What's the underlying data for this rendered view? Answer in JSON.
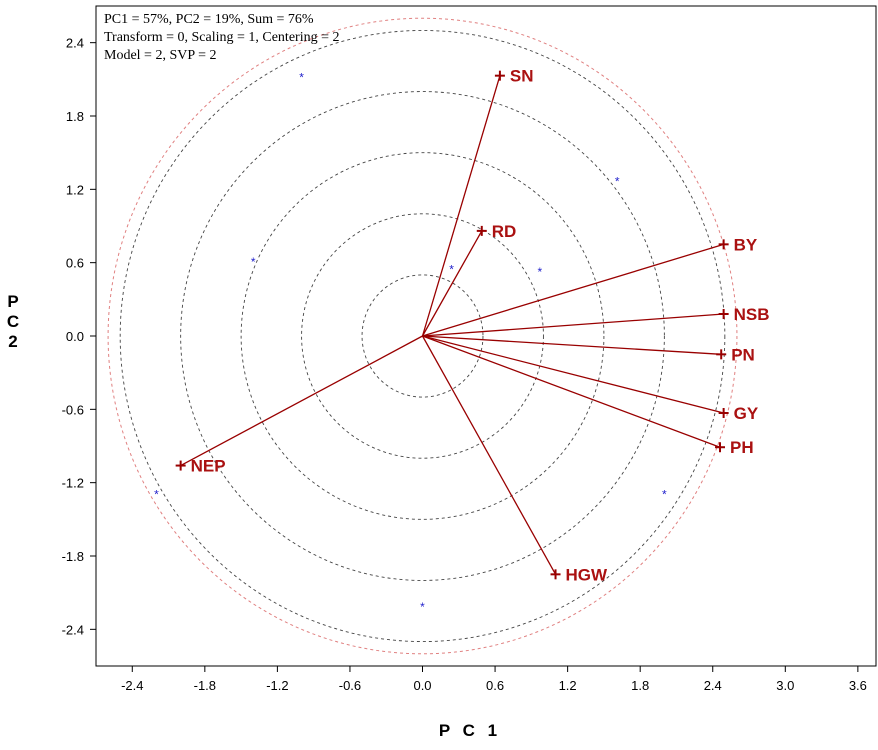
{
  "header": {
    "line1": "PC1 = 57%, PC2 = 19%, Sum = 76%",
    "line2": "Transform = 0, Scaling = 1, Centering = 2",
    "line3": "Model = 2, SVP = 2"
  },
  "chart_data": {
    "type": "scatter",
    "title": "",
    "xlabel": "P C 1",
    "ylabel_chars": [
      "P",
      "C",
      "2"
    ],
    "xlim": [
      -2.7,
      3.75
    ],
    "ylim": [
      -2.7,
      2.7
    ],
    "x_ticks": [
      "-2.4",
      "-1.8",
      "-1.2",
      "-0.6",
      "0.0",
      "0.6",
      "1.2",
      "1.8",
      "2.4",
      "3.0",
      "3.6"
    ],
    "y_ticks": [
      "2.4",
      "1.8",
      "1.2",
      "0.6",
      "0.0",
      "-0.6",
      "-1.2",
      "-1.8",
      "-2.4"
    ],
    "grid": false,
    "circle_radii": [
      0.5,
      1.0,
      1.5,
      2.0,
      2.5
    ],
    "outer_circle_radius": 2.6,
    "vectors": [
      {
        "label": "SN",
        "x": 0.64,
        "y": 2.13
      },
      {
        "label": "RD",
        "x": 0.49,
        "y": 0.86
      },
      {
        "label": "BY",
        "x": 2.49,
        "y": 0.75
      },
      {
        "label": "NSB",
        "x": 2.49,
        "y": 0.18
      },
      {
        "label": "PN",
        "x": 2.47,
        "y": -0.15
      },
      {
        "label": "GY",
        "x": 2.49,
        "y": -0.63
      },
      {
        "label": "PH",
        "x": 2.46,
        "y": -0.91
      },
      {
        "label": "HGW",
        "x": 1.1,
        "y": -1.95
      },
      {
        "label": "NEP",
        "x": -2.0,
        "y": -1.06
      }
    ],
    "points": [
      {
        "x": -1.0,
        "y": 2.13
      },
      {
        "x": 1.61,
        "y": 1.28
      },
      {
        "x": -1.4,
        "y": 0.62
      },
      {
        "x": 0.24,
        "y": 0.56
      },
      {
        "x": 0.97,
        "y": 0.54
      },
      {
        "x": -2.2,
        "y": -1.28
      },
      {
        "x": 2.0,
        "y": -1.28
      },
      {
        "x": 0.0,
        "y": -2.2
      }
    ],
    "colors": {
      "vector": "#990000",
      "label": "#aa1111",
      "point": "#2222cc",
      "circle": "#444444",
      "outer_circle": "#e08080",
      "frame": "#000000"
    }
  }
}
